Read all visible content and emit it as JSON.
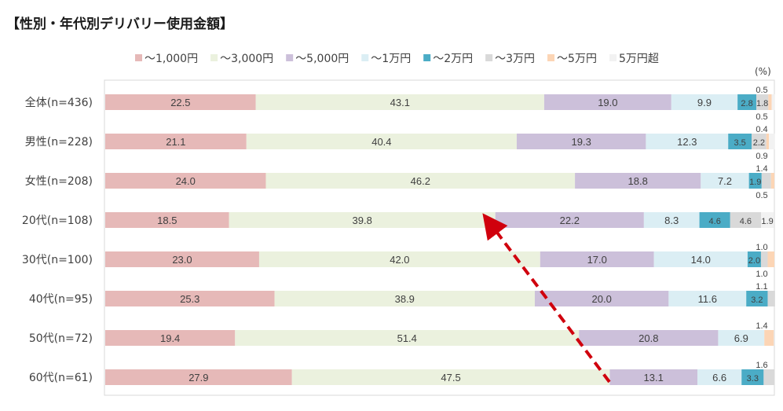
{
  "chart_data": {
    "type": "bar",
    "orientation": "horizontal-stacked-100",
    "title": "【性別・年代別デリバリー使用金額】",
    "unit": "(%)",
    "legend_position": "top",
    "categories": [
      "全体(n=436)",
      "男性(n=228)",
      "女性(n=208)",
      "20代(n=108)",
      "30代(n=100)",
      "40代(n=95)",
      "50代(n=72)",
      "60代(n=61)"
    ],
    "series": [
      {
        "name": "〜1,000円",
        "color": "#e6b9b8",
        "values": [
          22.5,
          21.1,
          24.0,
          18.5,
          23.0,
          25.3,
          19.4,
          27.9
        ]
      },
      {
        "name": "〜3,000円",
        "color": "#ebf1de",
        "values": [
          43.1,
          40.4,
          46.2,
          39.8,
          42.0,
          38.9,
          51.4,
          47.5
        ]
      },
      {
        "name": "〜5,000円",
        "color": "#ccc0da",
        "values": [
          19.0,
          19.3,
          18.8,
          22.2,
          17.0,
          20.0,
          20.8,
          13.1
        ]
      },
      {
        "name": "〜1万円",
        "color": "#dbeef4",
        "values": [
          9.9,
          12.3,
          7.2,
          8.3,
          14.0,
          11.6,
          6.9,
          6.6
        ]
      },
      {
        "name": "〜2万円",
        "color": "#4bacc6",
        "values": [
          2.8,
          3.5,
          1.9,
          4.6,
          2.0,
          3.2,
          0.0,
          3.3
        ]
      },
      {
        "name": "〜3万円",
        "color": "#d9d9d9",
        "values": [
          1.8,
          2.2,
          1.4,
          4.6,
          1.0,
          1.1,
          0.0,
          1.6
        ]
      },
      {
        "name": "〜5万円",
        "color": "#fcd5b5",
        "values": [
          0.5,
          0.4,
          0.5,
          0.0,
          1.0,
          0.0,
          1.4,
          0.0
        ]
      },
      {
        "name": "5万円超",
        "color": "#f2f2f2",
        "values": [
          0.5,
          0.9,
          0.0,
          1.9,
          0.0,
          0.0,
          0.0,
          0.0
        ]
      }
    ],
    "data_labels": [
      [
        "22.5",
        "43.1",
        "19.0",
        "9.9",
        "2.8",
        "1.8",
        "0.5",
        "0.5"
      ],
      [
        "21.1",
        "40.4",
        "19.3",
        "12.3",
        "3.5",
        "2.2",
        "0.4",
        "0.9"
      ],
      [
        "24.0",
        "46.2",
        "18.8",
        "7.2",
        "1.9",
        "1.4",
        "0.5",
        ""
      ],
      [
        "18.5",
        "39.8",
        "22.2",
        "8.3",
        "4.6",
        "4.6",
        "",
        "1.9"
      ],
      [
        "23.0",
        "42.0",
        "17.0",
        "14.0",
        "2.0",
        "1.0",
        "1.0",
        ""
      ],
      [
        "25.3",
        "38.9",
        "20.0",
        "11.6",
        "3.2",
        "1.1",
        "",
        ""
      ],
      [
        "19.4",
        "51.4",
        "20.8",
        "6.9",
        "",
        "",
        "1.4",
        ""
      ],
      [
        "27.9",
        "47.5",
        "13.1",
        "6.6",
        "3.3",
        "1.6",
        "",
        ""
      ]
    ],
    "xlim": [
      0,
      100
    ],
    "grid": false
  }
}
